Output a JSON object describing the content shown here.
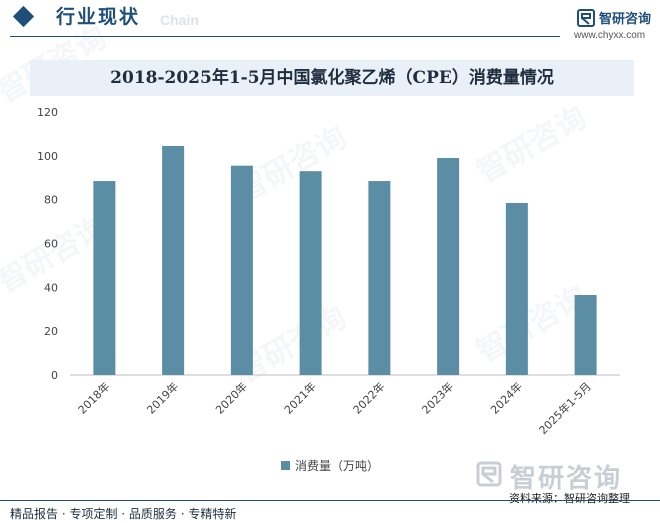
{
  "header": {
    "title": "行业现状",
    "subtitle_en": "Chain",
    "brand_name": "智研咨询",
    "brand_url": "www.chyxx.com"
  },
  "chart_data": {
    "type": "bar",
    "title": "2018-2025年1-5月中国氯化聚乙烯（CPE）消费量情况",
    "categories": [
      "2018年",
      "2019年",
      "2020年",
      "2021年",
      "2022年",
      "2023年",
      "2024年",
      "2025年1-5月"
    ],
    "series": [
      {
        "name": "消费量（万吨）",
        "values": [
          88.5,
          104.5,
          95.5,
          93,
          88.5,
          99,
          78.5,
          36.5
        ],
        "color": "#5b8ea5"
      }
    ],
    "ylim": [
      0,
      120
    ],
    "yticks": [
      0,
      20,
      40,
      60,
      80,
      100,
      120
    ],
    "grid": false,
    "legend": "bottom-center"
  },
  "legend": {
    "label": "消费量（万吨）"
  },
  "watermark": {
    "name": "智研咨询"
  },
  "source": "资料来源：智研咨询整理",
  "footer": "精品报告 · 专项定制 · 品质服务 · 专精特新",
  "colors": {
    "brand": "#1f4e79",
    "bar": "#5b8ea5",
    "banner": "#e9f0f7"
  }
}
